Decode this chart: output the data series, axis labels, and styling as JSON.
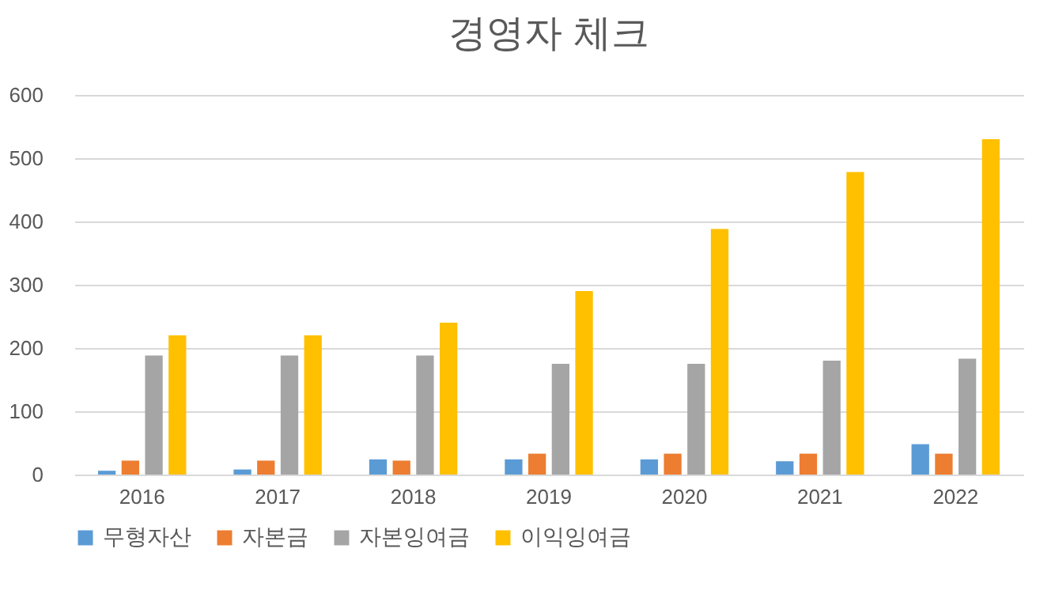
{
  "chart_data": {
    "type": "bar",
    "title": "경영자 체크",
    "categories": [
      "2016",
      "2017",
      "2018",
      "2019",
      "2020",
      "2021",
      "2022"
    ],
    "series": [
      {
        "name": "무형자산",
        "color": "#5b9bd5",
        "values": [
          6,
          8,
          24,
          24,
          24,
          21,
          48
        ]
      },
      {
        "name": "자본금",
        "color": "#ed7d31",
        "values": [
          22,
          22,
          22,
          33,
          33,
          33,
          33
        ]
      },
      {
        "name": "자본잉여금",
        "color": "#a5a5a5",
        "values": [
          188,
          188,
          188,
          175,
          175,
          180,
          183
        ]
      },
      {
        "name": "이익잉여금",
        "color": "#ffc000",
        "values": [
          220,
          220,
          240,
          290,
          388,
          478,
          530
        ]
      }
    ],
    "ylim": [
      0,
      600
    ],
    "yticks": [
      0,
      100,
      200,
      300,
      400,
      500,
      600
    ],
    "grid": "y",
    "legend": "bottom"
  }
}
